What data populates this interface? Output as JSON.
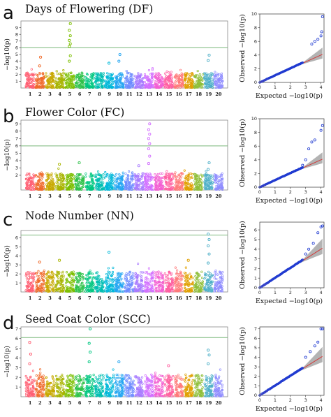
{
  "chart_data": [
    {
      "panel": "a",
      "title": "Days of Flowering (DF)",
      "type": "scatter",
      "manhattan": {
        "ylabel": "−log10(p)",
        "ylim": [
          0,
          10
        ],
        "yticks": [
          1,
          2,
          3,
          4,
          5,
          6,
          7,
          8,
          9
        ],
        "chromosomes": [
          "1",
          "2",
          "3",
          "4",
          "5",
          "6",
          "7",
          "8",
          "9",
          "10",
          "11",
          "12",
          "13",
          "14",
          "15",
          "16",
          "17",
          "18",
          "19",
          "20"
        ],
        "threshold": 6.0,
        "base_max": 2.2,
        "peaks": [
          {
            "chr": 2,
            "values": [
              3.3,
              4.6
            ]
          },
          {
            "chr": 5,
            "values": [
              4.0,
              4.8,
              6.2,
              6.6,
              7.1,
              7.8,
              8.6,
              9.6
            ]
          },
          {
            "chr": 9,
            "values": [
              3.7
            ]
          },
          {
            "chr": 10,
            "values": [
              4.0,
              5.0
            ]
          },
          {
            "chr": 19,
            "values": [
              4.1,
              4.9
            ]
          }
        ]
      },
      "qq": {
        "xlabel": "Expected −log10(p)",
        "ylabel": "Observed −log10(p)",
        "xlim": [
          0,
          4.2
        ],
        "ylim": [
          0,
          10
        ],
        "xticks": [
          0,
          1,
          2,
          3,
          4
        ],
        "yticks": [
          0,
          2,
          4,
          6,
          8,
          10
        ],
        "observed_max": 9.6,
        "tail_points": [
          [
            3.4,
            5.6
          ],
          [
            3.6,
            6.0
          ],
          [
            3.8,
            6.3
          ],
          [
            4.0,
            6.8
          ],
          [
            4.05,
            7.4
          ],
          [
            4.1,
            9.6
          ]
        ]
      }
    },
    {
      "panel": "b",
      "title": "Flower Color (FC)",
      "type": "scatter",
      "manhattan": {
        "ylabel": "−log10(p)",
        "ylim": [
          0,
          9.5
        ],
        "yticks": [
          2,
          3,
          4,
          5,
          6,
          7,
          8,
          9
        ],
        "chromosomes": [
          "1",
          "2",
          "3",
          "4",
          "5",
          "6",
          "7",
          "8",
          "9",
          "10",
          "11",
          "12",
          "13",
          "14",
          "15",
          "16",
          "17",
          "18",
          "19",
          "20"
        ],
        "threshold": 6.0,
        "base_max": 2.2,
        "peaks": [
          {
            "chr": 4,
            "values": [
              3.5
            ]
          },
          {
            "chr": 6,
            "values": [
              3.7
            ]
          },
          {
            "chr": 12,
            "values": [
              3.3
            ]
          },
          {
            "chr": 13,
            "values": [
              3.6,
              4.6,
              5.6,
              6.3,
              7.0,
              7.6,
              8.2,
              9.0
            ]
          },
          {
            "chr": 19,
            "values": [
              2.8,
              3.7
            ]
          }
        ]
      },
      "qq": {
        "xlabel": "Expected −log10(p)",
        "ylabel": "Observed −log10(p)",
        "xlim": [
          0,
          4.2
        ],
        "ylim": [
          0,
          10
        ],
        "xticks": [
          0,
          1,
          2,
          3,
          4
        ],
        "yticks": [
          0,
          2,
          4,
          6,
          8,
          10
        ],
        "observed_max": 9.0,
        "tail_points": [
          [
            2.8,
            3.2
          ],
          [
            3.0,
            4.0
          ],
          [
            3.2,
            5.6
          ],
          [
            3.4,
            6.6
          ],
          [
            3.6,
            6.9
          ],
          [
            4.0,
            8.3
          ],
          [
            4.1,
            9.0
          ]
        ]
      }
    },
    {
      "panel": "c",
      "title": "Node Number (NN)",
      "type": "scatter",
      "manhattan": {
        "ylabel": "−log10(p)",
        "ylim": [
          0,
          6.8
        ],
        "yticks": [
          1,
          2,
          3,
          4,
          5,
          6
        ],
        "chromosomes": [
          "1",
          "2",
          "3",
          "4",
          "5",
          "6",
          "7",
          "8",
          "9",
          "10",
          "11",
          "12",
          "13",
          "14",
          "15",
          "16",
          "17",
          "18",
          "19",
          "20"
        ],
        "threshold": 6.3,
        "base_max": 2.2,
        "peaks": [
          {
            "chr": 2,
            "values": [
              3.3
            ]
          },
          {
            "chr": 4,
            "values": [
              3.5
            ]
          },
          {
            "chr": 9,
            "values": [
              4.4
            ]
          },
          {
            "chr": 17,
            "values": [
              3.5
            ]
          },
          {
            "chr": 19,
            "values": [
              3.2,
              4.2,
              5.1,
              5.8,
              6.4
            ]
          }
        ]
      },
      "qq": {
        "xlabel": "Expected −log10(p)",
        "ylabel": "Observed −log10(p)",
        "xlim": [
          0,
          4.2
        ],
        "ylim": [
          0,
          6.8
        ],
        "xticks": [
          0,
          1,
          2,
          3,
          4
        ],
        "yticks": [
          0,
          1,
          2,
          3,
          4,
          5,
          6
        ],
        "observed_max": 6.4,
        "tail_points": [
          [
            3.0,
            3.5
          ],
          [
            3.2,
            4.0
          ],
          [
            3.5,
            4.6
          ],
          [
            3.8,
            5.7
          ],
          [
            4.0,
            6.3
          ],
          [
            4.1,
            6.4
          ]
        ]
      }
    },
    {
      "panel": "d",
      "title": "Seed Coat Color (SCC)",
      "type": "scatter",
      "manhattan": {
        "ylabel": "−log10(p)",
        "ylim": [
          0,
          7.2
        ],
        "yticks": [
          1,
          2,
          3,
          4,
          5,
          6,
          7
        ],
        "chromosomes": [
          "1",
          "2",
          "3",
          "4",
          "5",
          "6",
          "7",
          "8",
          "9",
          "10",
          "11",
          "12",
          "13",
          "14",
          "15",
          "16",
          "17",
          "18",
          "19",
          "20"
        ],
        "threshold": 6.1,
        "base_max": 2.2,
        "peaks": [
          {
            "chr": 1,
            "values": [
              3.4,
              4.4,
              5.6
            ]
          },
          {
            "chr": 7,
            "values": [
              3.6,
              4.6,
              5.5,
              7.0
            ]
          },
          {
            "chr": 10,
            "values": [
              3.6
            ]
          },
          {
            "chr": 15,
            "values": [
              3.2
            ]
          },
          {
            "chr": 19,
            "values": [
              3.4,
              4.3,
              4.8
            ]
          }
        ]
      },
      "qq": {
        "xlabel": "Expected −log10(p)",
        "ylabel": "Observed −log10(p)",
        "xlim": [
          0,
          4.2
        ],
        "ylim": [
          0,
          7.2
        ],
        "xticks": [
          0,
          1,
          2,
          3,
          4
        ],
        "yticks": [
          0,
          1,
          2,
          3,
          4,
          5,
          6,
          7
        ],
        "observed_max": 7.0,
        "tail_points": [
          [
            3.0,
            4.0
          ],
          [
            3.3,
            4.6
          ],
          [
            3.6,
            5.2
          ],
          [
            3.8,
            5.6
          ],
          [
            4.0,
            7.0
          ],
          [
            4.1,
            7.0
          ]
        ]
      }
    }
  ],
  "chr_colors": [
    "#ff5f73",
    "#f06a2a",
    "#c8a900",
    "#a8b400",
    "#7cbf00",
    "#2fc24a",
    "#00c781",
    "#00bfb2",
    "#00b8d9",
    "#24a6f2",
    "#6f8cff",
    "#a87bff",
    "#d26fff",
    "#f35fd2",
    "#ff5fa0",
    "#ff7a7a",
    "#e0a000",
    "#8fbf3a",
    "#4fb0c8",
    "#8f8cff"
  ],
  "threshold_color": "#7ab87a",
  "qq_point_color": "#1f3ad1",
  "qq_line_color": "#d23b3b",
  "qq_band_color": "#9a9a9a"
}
